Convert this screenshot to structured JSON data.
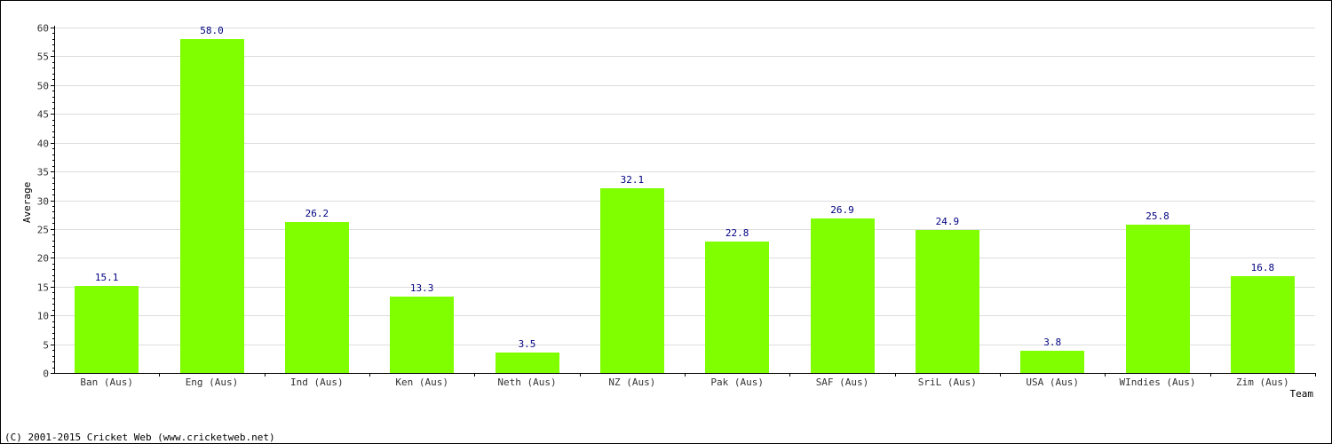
{
  "chart_data": {
    "type": "bar",
    "categories": [
      "Ban (Aus)",
      "Eng (Aus)",
      "Ind (Aus)",
      "Ken (Aus)",
      "Neth (Aus)",
      "NZ (Aus)",
      "Pak (Aus)",
      "SAF (Aus)",
      "SriL (Aus)",
      "USA (Aus)",
      "WIndies (Aus)",
      "Zim (Aus)"
    ],
    "values": [
      15.1,
      58.0,
      26.2,
      13.3,
      3.5,
      32.1,
      22.8,
      26.9,
      24.9,
      3.8,
      25.8,
      16.8
    ],
    "value_labels": [
      "15.1",
      "58.0",
      "26.2",
      "13.3",
      "3.5",
      "32.1",
      "22.8",
      "26.9",
      "24.9",
      "3.8",
      "25.8",
      "16.8"
    ],
    "xlabel": "Team",
    "ylabel": "Average",
    "ylim": [
      0,
      60
    ],
    "yticks": [
      0,
      5,
      10,
      15,
      20,
      25,
      30,
      35,
      40,
      45,
      50,
      55,
      60
    ],
    "grid": true,
    "bar_color": "#80ff00",
    "value_label_color": "#000080"
  },
  "footer": {
    "copyright": "(C) 2001-2015 Cricket Web (www.cricketweb.net)"
  }
}
